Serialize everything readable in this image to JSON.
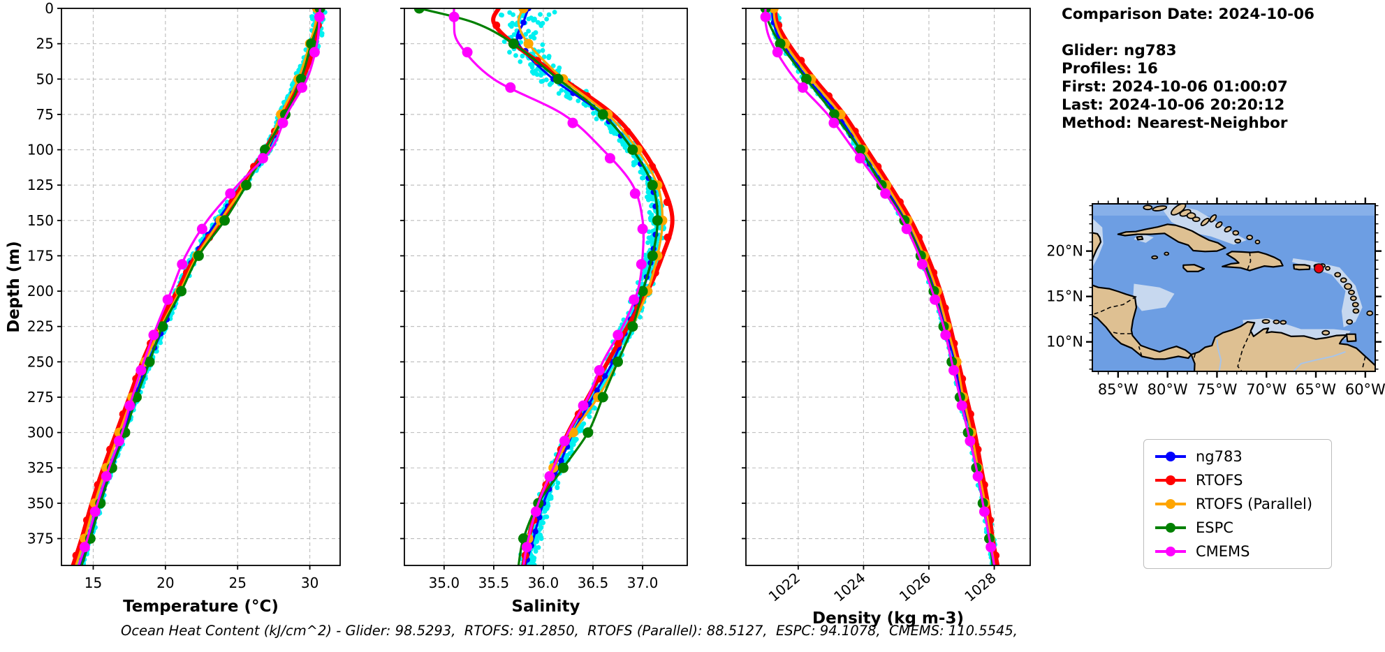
{
  "info_panel": {
    "lines": [
      "Comparison Date: 2024-10-06",
      "",
      "Glider: ng783",
      "Profiles: 16",
      "First: 2024-10-06 01:00:07",
      "Last: 2024-10-06 20:20:12",
      "Method: Nearest-Neighbor"
    ]
  },
  "legend": {
    "entries": [
      {
        "label": "ng783",
        "color": "#0000ff"
      },
      {
        "label": "RTOFS",
        "color": "#ff0000"
      },
      {
        "label": "RTOFS (Parallel)",
        "color": "#ffa500"
      },
      {
        "label": "ESPC",
        "color": "#008000"
      },
      {
        "label": "CMEMS",
        "color": "#ff00ff"
      }
    ]
  },
  "footer": {
    "text": "Ocean Heat Content (kJ/cm^2) - Glider: 98.5293,  RTOFS: 91.2850,  RTOFS (Parallel): 88.5127,  ESPC: 94.1078,  CMEMS: 110.5545,"
  },
  "chart_data": [
    {
      "type": "line",
      "panel": "temperature",
      "xlabel": "Temperature (°C)",
      "ylabel": "Depth (m)",
      "xlim": [
        12.8,
        32.1
      ],
      "ylim": [
        0,
        394
      ],
      "xticks": [
        15,
        20,
        25,
        30
      ],
      "xtick_labels": [
        "15",
        "20",
        "25",
        "30"
      ],
      "xtick_rotation": 0,
      "yticks": [
        0,
        25,
        50,
        75,
        100,
        125,
        150,
        175,
        200,
        225,
        250,
        275,
        300,
        325,
        350,
        375
      ],
      "grid": true,
      "depths": [
        0,
        10,
        25,
        50,
        75,
        100,
        125,
        150,
        175,
        200,
        225,
        250,
        275,
        300,
        325,
        350,
        375,
        394
      ],
      "scatter": {
        "name": "glider-raw-points",
        "color": "#00f0f0",
        "spread": 0.3,
        "surface_extra": 0.35,
        "count": 900
      },
      "series": [
        {
          "name": "ng783",
          "color": "#0000ff",
          "lw": 3.2,
          "marker_every": 10,
          "marker_size": 4.2,
          "marker_offset": 0,
          "values": [
            30.6,
            30.55,
            30.3,
            29.3,
            28.1,
            27.1,
            25.4,
            23.6,
            22.0,
            20.9,
            19.9,
            18.8,
            17.9,
            17.1,
            16.2,
            15.4,
            14.7,
            14.1
          ]
        },
        {
          "name": "RTOFS",
          "color": "#ff0000",
          "lw": 6,
          "marker_every": 25,
          "marker_size": 5.5,
          "marker_offset": 12,
          "values": [
            30.6,
            30.6,
            30.4,
            29.5,
            28.2,
            26.9,
            25.3,
            23.9,
            22.1,
            20.8,
            19.5,
            18.4,
            17.5,
            16.6,
            15.7,
            14.9,
            14.2,
            13.6
          ]
        },
        {
          "name": "RTOFS (Parallel)",
          "color": "#ffa500",
          "lw": 3.2,
          "marker_every": 25,
          "marker_size": 7,
          "marker_offset": 0,
          "values": [
            30.5,
            30.4,
            30.0,
            29.2,
            28.0,
            27.0,
            25.5,
            23.8,
            22.2,
            21.0,
            19.7,
            18.6,
            17.7,
            16.8,
            15.9,
            15.1,
            14.4,
            13.8
          ]
        },
        {
          "name": "ESPC",
          "color": "#008000",
          "lw": 3.2,
          "marker_every": 25,
          "marker_size": 7.5,
          "marker_offset": 0,
          "values": [
            30.7,
            30.6,
            30.1,
            29.4,
            28.3,
            26.9,
            25.6,
            24.1,
            22.3,
            21.1,
            19.8,
            18.9,
            18.0,
            17.2,
            16.3,
            15.5,
            14.8,
            14.2
          ]
        },
        {
          "name": "CMEMS",
          "color": "#ff00ff",
          "lw": 3.2,
          "marker_every": 25,
          "marker_size": 7.5,
          "marker_offset": 6,
          "values": [
            30.7,
            30.65,
            30.5,
            29.8,
            28.4,
            27.3,
            25.0,
            22.9,
            21.4,
            20.4,
            19.4,
            18.5,
            17.7,
            17.0,
            16.1,
            15.3,
            14.6,
            14.0
          ]
        }
      ]
    },
    {
      "type": "line",
      "panel": "salinity",
      "xlabel": "Salinity",
      "ylabel": "",
      "xlim": [
        34.6,
        37.45
      ],
      "ylim": [
        0,
        394
      ],
      "xticks": [
        35.0,
        35.5,
        36.0,
        36.5,
        37.0
      ],
      "xtick_labels": [
        "35.0",
        "35.5",
        "36.0",
        "36.5",
        "37.0"
      ],
      "xtick_rotation": 0,
      "yticks": [
        0,
        25,
        50,
        75,
        100,
        125,
        150,
        175,
        200,
        225,
        250,
        275,
        300,
        325,
        350,
        375
      ],
      "grid": true,
      "depths": [
        0,
        10,
        25,
        50,
        75,
        100,
        125,
        150,
        175,
        200,
        225,
        250,
        275,
        300,
        325,
        350,
        375,
        394
      ],
      "scatter": {
        "name": "glider-raw-points",
        "color": "#00f0f0",
        "spread": 0.09,
        "surface_extra": 0.22,
        "count": 900
      },
      "series": [
        {
          "name": "ng783",
          "color": "#0000ff",
          "lw": 3.2,
          "marker_every": 10,
          "marker_size": 4.2,
          "marker_offset": 0,
          "values": [
            35.85,
            35.8,
            35.75,
            36.1,
            36.6,
            36.9,
            37.1,
            37.15,
            37.1,
            37.0,
            36.85,
            36.7,
            36.5,
            36.3,
            36.15,
            36.0,
            35.9,
            35.82
          ]
        },
        {
          "name": "RTOFS",
          "color": "#ff0000",
          "lw": 6,
          "marker_every": 25,
          "marker_size": 5.5,
          "marker_offset": 12,
          "values": [
            35.55,
            35.5,
            35.7,
            36.2,
            36.7,
            37.0,
            37.2,
            37.3,
            37.2,
            37.05,
            36.85,
            36.65,
            36.45,
            36.25,
            36.1,
            35.95,
            35.85,
            35.8
          ]
        },
        {
          "name": "RTOFS (Parallel)",
          "color": "#ffa500",
          "lw": 3.2,
          "marker_every": 25,
          "marker_size": 7,
          "marker_offset": 0,
          "values": [
            35.8,
            35.75,
            35.85,
            36.2,
            36.65,
            36.95,
            37.15,
            37.2,
            37.15,
            37.05,
            36.9,
            36.75,
            36.55,
            36.3,
            36.1,
            35.95,
            35.85,
            35.8
          ]
        },
        {
          "name": "ESPC",
          "color": "#008000",
          "lw": 3.2,
          "marker_every": 25,
          "marker_size": 7.5,
          "marker_offset": 0,
          "values": [
            34.75,
            35.3,
            35.7,
            36.15,
            36.6,
            36.9,
            37.1,
            37.15,
            37.1,
            37.0,
            36.9,
            36.75,
            36.6,
            36.45,
            36.2,
            35.95,
            35.8,
            35.75
          ]
        },
        {
          "name": "CMEMS",
          "color": "#ff00ff",
          "lw": 3.2,
          "marker_every": 25,
          "marker_size": 7.5,
          "marker_offset": 6,
          "values": [
            35.1,
            35.1,
            35.15,
            35.5,
            36.2,
            36.6,
            36.9,
            37.0,
            37.0,
            36.95,
            36.8,
            36.6,
            36.45,
            36.25,
            36.1,
            35.95,
            35.85,
            35.8
          ]
        }
      ]
    },
    {
      "type": "line",
      "panel": "density",
      "xlabel": "Density (kg m-3)",
      "ylabel": "",
      "xlim": [
        1020.4,
        1029.1
      ],
      "ylim": [
        0,
        394
      ],
      "xticks": [
        1022,
        1024,
        1026,
        1028
      ],
      "xtick_labels": [
        "1022",
        "1024",
        "1026",
        "1028"
      ],
      "xtick_rotation": 40,
      "yticks": [
        0,
        25,
        50,
        75,
        100,
        125,
        150,
        175,
        200,
        225,
        250,
        275,
        300,
        325,
        350,
        375
      ],
      "grid": true,
      "depths": [
        0,
        10,
        25,
        50,
        75,
        100,
        125,
        150,
        175,
        200,
        225,
        250,
        275,
        300,
        325,
        350,
        375,
        394
      ],
      "scatter": {
        "name": "glider-raw-points",
        "color": "#00f0f0",
        "spread": 0.12,
        "surface_extra": 0.1,
        "count": 800
      },
      "series": [
        {
          "name": "ng783",
          "color": "#0000ff",
          "lw": 3.2,
          "marker_every": 10,
          "marker_size": 4.2,
          "marker_offset": 0,
          "values": [
            1021.2,
            1021.25,
            1021.5,
            1022.3,
            1023.2,
            1023.9,
            1024.6,
            1025.3,
            1025.8,
            1026.2,
            1026.5,
            1026.8,
            1027.0,
            1027.3,
            1027.5,
            1027.7,
            1027.9,
            1028.0
          ]
        },
        {
          "name": "RTOFS",
          "color": "#ff0000",
          "lw": 6,
          "marker_every": 25,
          "marker_size": 5.5,
          "marker_offset": 12,
          "values": [
            1021.3,
            1021.35,
            1021.7,
            1022.5,
            1023.4,
            1024.1,
            1024.8,
            1025.45,
            1025.95,
            1026.35,
            1026.65,
            1026.9,
            1027.15,
            1027.4,
            1027.6,
            1027.8,
            1027.95,
            1028.1
          ]
        },
        {
          "name": "RTOFS (Parallel)",
          "color": "#ffa500",
          "lw": 3.2,
          "marker_every": 25,
          "marker_size": 7,
          "marker_offset": 0,
          "values": [
            1021.25,
            1021.3,
            1021.6,
            1022.4,
            1023.3,
            1024.0,
            1024.7,
            1025.35,
            1025.85,
            1026.25,
            1026.55,
            1026.85,
            1027.05,
            1027.3,
            1027.5,
            1027.72,
            1027.88,
            1028.0
          ]
        },
        {
          "name": "ESPC",
          "color": "#008000",
          "lw": 3.2,
          "marker_every": 25,
          "marker_size": 7.5,
          "marker_offset": 0,
          "values": [
            1021.0,
            1021.1,
            1021.45,
            1022.25,
            1023.1,
            1023.9,
            1024.55,
            1025.25,
            1025.75,
            1026.15,
            1026.45,
            1026.7,
            1026.95,
            1027.2,
            1027.45,
            1027.65,
            1027.85,
            1027.95
          ]
        },
        {
          "name": "CMEMS",
          "color": "#ff00ff",
          "lw": 3.2,
          "marker_every": 25,
          "marker_size": 7.5,
          "marker_offset": 6,
          "values": [
            1021.0,
            1021.0,
            1021.2,
            1021.9,
            1022.9,
            1023.7,
            1024.5,
            1025.2,
            1025.7,
            1026.1,
            1026.45,
            1026.7,
            1026.95,
            1027.2,
            1027.45,
            1027.65,
            1027.85,
            1028.0
          ]
        }
      ]
    },
    {
      "type": "map",
      "region": "Caribbean Sea",
      "extent": {
        "lon_min": -87.6,
        "lon_max": -59.0,
        "lat_min": 6.75,
        "lat_max": 25.2
      },
      "lon_ticks": [
        -85,
        -80,
        -75,
        -70,
        -65,
        -60
      ],
      "lon_tick_labels": [
        "85°W",
        "80°W",
        "75°W",
        "70°W",
        "65°W",
        "60°W"
      ],
      "lat_ticks": [
        20,
        15,
        10
      ],
      "lat_tick_labels": [
        "20°N",
        "15°N",
        "10°N"
      ],
      "marker": {
        "lon": -64.7,
        "lat": 18.1,
        "color": "#e8000b"
      },
      "colors": {
        "ocean": "#6d9ee3",
        "ocean_deep_band": "#87b0e9",
        "shallow": "#c7d8ef",
        "land": "#dec092",
        "coast": "#000000"
      }
    }
  ]
}
